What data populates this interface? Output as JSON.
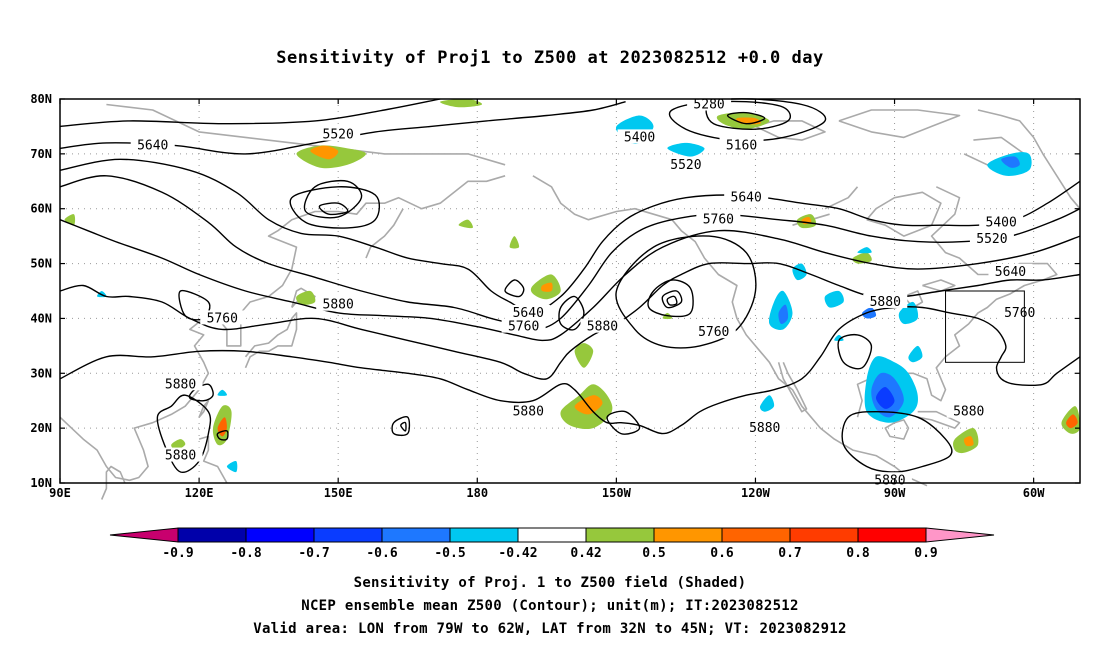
{
  "title": "Sensitivity of Proj1 to Z500 at 2023082512 +0.0 day",
  "map": {
    "lat_labels": [
      "80N",
      "70N",
      "60N",
      "50N",
      "40N",
      "30N",
      "20N",
      "10N"
    ],
    "lon_labels": [
      "90E",
      "120E",
      "150E",
      "180",
      "150W",
      "120W",
      "90W",
      "60W"
    ],
    "contour_labels": [
      {
        "text": "5640",
        "lon": 110,
        "lat": 71.5
      },
      {
        "text": "5520",
        "lon": 150,
        "lat": 73.5
      },
      {
        "text": "5280",
        "lon": 230,
        "lat": 79
      },
      {
        "text": "5400",
        "lon": 215,
        "lat": 73
      },
      {
        "text": "5160",
        "lon": 237,
        "lat": 71.5
      },
      {
        "text": "5520",
        "lon": 225,
        "lat": 68
      },
      {
        "text": "5640",
        "lon": 238,
        "lat": 62
      },
      {
        "text": "5760",
        "lon": 232,
        "lat": 58
      },
      {
        "text": "5400",
        "lon": 293,
        "lat": 57.5
      },
      {
        "text": "5520",
        "lon": 291,
        "lat": 54.5
      },
      {
        "text": "5640",
        "lon": 295,
        "lat": 48.5
      },
      {
        "text": "5760",
        "lon": 297,
        "lat": 41
      },
      {
        "text": "5880",
        "lon": 150,
        "lat": 42.5
      },
      {
        "text": "5760",
        "lon": 125,
        "lat": 40
      },
      {
        "text": "5640",
        "lon": 191,
        "lat": 41
      },
      {
        "text": "5760",
        "lon": 190,
        "lat": 38.5
      },
      {
        "text": "5880",
        "lon": 207,
        "lat": 38.5
      },
      {
        "text": "5760",
        "lon": 231,
        "lat": 37.5
      },
      {
        "text": "5880",
        "lon": 268,
        "lat": 43
      },
      {
        "text": "5880",
        "lon": 116,
        "lat": 28
      },
      {
        "text": "5880",
        "lon": 191,
        "lat": 23
      },
      {
        "text": "5880",
        "lon": 116,
        "lat": 15
      },
      {
        "text": "5880",
        "lon": 242,
        "lat": 20
      },
      {
        "text": "5880",
        "lon": 286,
        "lat": 23
      },
      {
        "text": "5880",
        "lon": 269,
        "lat": 10.5
      }
    ]
  },
  "colorbar": {
    "labels": [
      "-0.9",
      "-0.8",
      "-0.7",
      "-0.6",
      "-0.5",
      "-0.42",
      "0.42",
      "0.5",
      "0.6",
      "0.7",
      "0.8",
      "0.9"
    ],
    "colors": [
      "#0000aa",
      "#0000ff",
      "#0a3cff",
      "#1e78ff",
      "#00c8f0",
      "#ffffff",
      "#96c83c",
      "#ff9600",
      "#ff6400",
      "#ff3c00",
      "#ff0000"
    ],
    "left_arrow_color": "#c8006e",
    "right_arrow_color": "#ff96c8"
  },
  "footer": {
    "line1": "Sensitivity of Proj. 1 to Z500 field (Shaded)",
    "line2": "NCEP ensemble mean Z500 (Contour); unit(m); IT:2023082512",
    "line3": "Valid area: LON from 79W to 62W, LAT from 32N to 45N; VT: 2023082912"
  }
}
